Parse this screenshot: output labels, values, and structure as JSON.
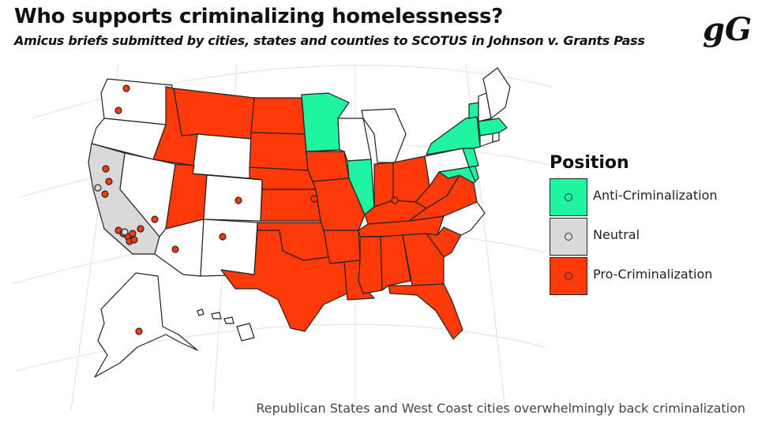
{
  "header": {
    "title": "Who supports criminalizing homelessness?",
    "subtitle": "Amicus briefs submitted by cities, states and counties to SCOTUS in Johnson v. Grants Pass",
    "logo": "gG"
  },
  "legend": {
    "title": "Position",
    "items": [
      {
        "label": "Anti-Criminalization",
        "color": "#1ff5a0"
      },
      {
        "label": "Neutral",
        "color": "#d9d9d9"
      },
      {
        "label": "Pro-Criminalization",
        "color": "#ff3a0a"
      }
    ]
  },
  "colors": {
    "anti": "#1ff5a0",
    "neutral": "#d9d9d9",
    "pro": "#ff3a0a",
    "none": "#ffffff",
    "border": "#222222",
    "graticule": "#e6e6e6"
  },
  "states": {
    "WA": "none",
    "OR": "none",
    "CA": "neutral",
    "NV": "none",
    "ID": "pro",
    "MT": "pro",
    "WY": "none",
    "UT": "pro",
    "AZ": "none",
    "CO": "none",
    "NM": "none",
    "ND": "pro",
    "SD": "pro",
    "NE": "pro",
    "KS": "pro",
    "OK": "pro",
    "TX": "pro",
    "MN": "anti",
    "IA": "pro",
    "MO": "pro",
    "AR": "pro",
    "LA": "pro",
    "WI": "none",
    "IL": "anti",
    "MI": "none",
    "IN": "pro",
    "OH": "pro",
    "KY": "pro",
    "TN": "pro",
    "MS": "pro",
    "AL": "pro",
    "GA": "pro",
    "FL": "pro",
    "SC": "pro",
    "NC": "none",
    "VA": "pro",
    "WV": "pro",
    "MD": "anti",
    "DE": "anti",
    "PA": "none",
    "NJ": "anti",
    "NY": "anti",
    "CT": "none",
    "RI": "none",
    "MA": "anti",
    "VT": "anti",
    "NH": "none",
    "ME": "none",
    "AK": "none",
    "HI": "none"
  },
  "cities": [
    {
      "position": "pro"
    },
    {
      "position": "pro"
    },
    {
      "position": "pro"
    },
    {
      "position": "pro"
    },
    {
      "position": "neutral"
    },
    {
      "position": "pro"
    },
    {
      "position": "pro"
    },
    {
      "position": "pro"
    },
    {
      "position": "pro"
    },
    {
      "position": "pro"
    },
    {
      "position": "pro"
    },
    {
      "position": "pro"
    },
    {
      "position": "pro"
    },
    {
      "position": "neutral"
    },
    {
      "position": "pro"
    },
    {
      "position": "pro"
    },
    {
      "position": "pro"
    },
    {
      "position": "pro"
    },
    {
      "position": "pro"
    },
    {
      "position": "pro"
    },
    {
      "position": "pro"
    }
  ],
  "footnote": "Republican States and West Coast cities overwhelmingly back criminalization"
}
